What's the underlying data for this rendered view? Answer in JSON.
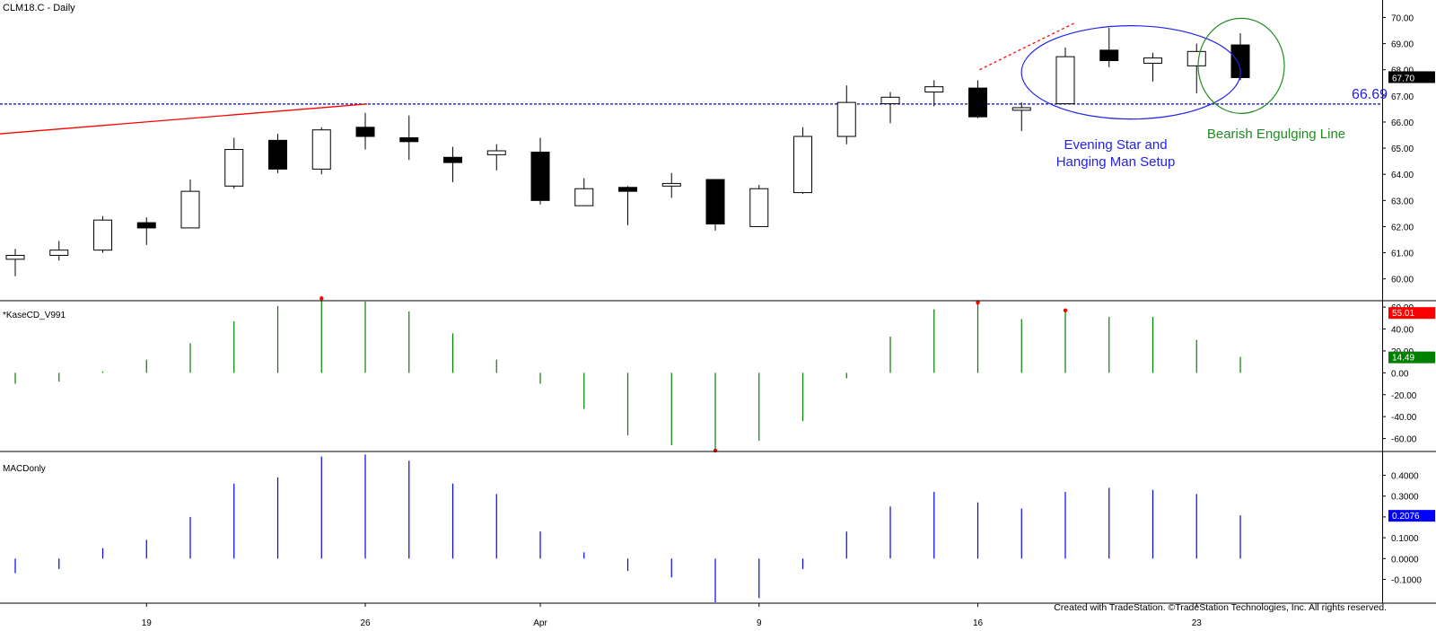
{
  "header": {
    "symbol_title": "CLM18.C - Daily",
    "indicator1_title": "*KaseCD_V991",
    "indicator2_title": "MACDonly",
    "copyright": "Created with TradeStation. ©TradeStation Technologies, Inc. All rights reserved."
  },
  "colors": {
    "up_fill": "#ffffff",
    "down_fill": "#000000",
    "kase_bar": "#008000",
    "kase_dot": "#ff0000",
    "macd_bar": "#0000ff",
    "support_line": "#0000cc",
    "trend_line": "#ff0000",
    "evening_star_circle": "#2222ee",
    "engulfing_circle": "#228b22",
    "last_price_badge": "#000000",
    "kase_hi_badge": "#ff0000",
    "kase_lo_badge": "#008000",
    "macd_badge": "#0000ff"
  },
  "annotations": {
    "support_level": "66.69",
    "evening_star_line1": "Evening Star and",
    "evening_star_line2": "Hanging Man Setup",
    "bearish_engulfing": "Bearish Engulging Line"
  },
  "badges": {
    "last_price": "67.70",
    "kase_high": "55.01",
    "kase_low": "14.49",
    "macd": "0.2076"
  },
  "chart_data": [
    {
      "type": "candlestick",
      "title": "CLM18.C - Daily",
      "x_tick_labels": [
        "19",
        "26",
        "Apr",
        "9",
        "16",
        "23"
      ],
      "x_tick_bar_index": [
        3,
        8,
        12,
        17,
        22,
        27
      ],
      "y_ticks": [
        60.0,
        61.0,
        62.0,
        63.0,
        64.0,
        65.0,
        66.0,
        67.0,
        68.0,
        69.0,
        70.0
      ],
      "y_tick_labels": [
        "60.00",
        "61.00",
        "62.00",
        "63.00",
        "64.00",
        "65.00",
        "66.00",
        "67.00",
        "68.00",
        "69.00",
        "70.00"
      ],
      "ylim": [
        59.2,
        70.6
      ],
      "support_level": 66.69,
      "trend_line": {
        "from_price": 65.55,
        "to_bar": 8,
        "to_price": 66.69
      },
      "dashed_trend": {
        "from_bar": 22,
        "from_price": 68.0,
        "to_bar": 24.2,
        "to_price": 69.78
      },
      "bars": [
        {
          "o": 60.75,
          "h": 61.15,
          "l": 60.1,
          "c": 60.9
        },
        {
          "o": 60.9,
          "h": 61.45,
          "l": 60.7,
          "c": 61.1
        },
        {
          "o": 61.1,
          "h": 62.4,
          "l": 61.0,
          "c": 62.25
        },
        {
          "o": 62.15,
          "h": 62.35,
          "l": 61.3,
          "c": 61.95
        },
        {
          "o": 61.95,
          "h": 63.8,
          "l": 61.95,
          "c": 63.35
        },
        {
          "o": 63.55,
          "h": 65.4,
          "l": 63.45,
          "c": 64.95
        },
        {
          "o": 65.3,
          "h": 65.55,
          "l": 64.05,
          "c": 64.2
        },
        {
          "o": 64.2,
          "h": 65.8,
          "l": 64.0,
          "c": 65.7
        },
        {
          "o": 65.8,
          "h": 66.35,
          "l": 64.95,
          "c": 65.45
        },
        {
          "o": 65.4,
          "h": 66.25,
          "l": 64.55,
          "c": 65.25
        },
        {
          "o": 64.65,
          "h": 65.05,
          "l": 63.7,
          "c": 64.45
        },
        {
          "o": 64.75,
          "h": 65.15,
          "l": 64.15,
          "c": 64.9
        },
        {
          "o": 64.85,
          "h": 65.4,
          "l": 62.85,
          "c": 63.0
        },
        {
          "o": 62.8,
          "h": 63.85,
          "l": 62.8,
          "c": 63.45
        },
        {
          "o": 63.5,
          "h": 63.55,
          "l": 62.05,
          "c": 63.35
        },
        {
          "o": 63.55,
          "h": 64.05,
          "l": 63.1,
          "c": 63.65
        },
        {
          "o": 63.8,
          "h": 63.8,
          "l": 61.85,
          "c": 62.1
        },
        {
          "o": 62.0,
          "h": 63.6,
          "l": 62.0,
          "c": 63.45
        },
        {
          "o": 63.3,
          "h": 65.8,
          "l": 63.25,
          "c": 65.45
        },
        {
          "o": 65.45,
          "h": 67.4,
          "l": 65.15,
          "c": 66.75
        },
        {
          "o": 66.7,
          "h": 67.15,
          "l": 65.95,
          "c": 66.95
        },
        {
          "o": 67.15,
          "h": 67.6,
          "l": 66.6,
          "c": 67.35
        },
        {
          "o": 67.3,
          "h": 67.6,
          "l": 66.15,
          "c": 66.2
        },
        {
          "o": 66.45,
          "h": 66.75,
          "l": 65.65,
          "c": 66.55
        },
        {
          "o": 66.7,
          "h": 68.85,
          "l": 66.7,
          "c": 68.5
        },
        {
          "o": 68.75,
          "h": 69.6,
          "l": 68.1,
          "c": 68.35
        },
        {
          "o": 68.25,
          "h": 68.65,
          "l": 67.55,
          "c": 68.45
        },
        {
          "o": 68.15,
          "h": 69.0,
          "l": 67.1,
          "c": 68.7
        },
        {
          "o": 68.95,
          "h": 69.4,
          "l": 67.6,
          "c": 67.7
        }
      ]
    },
    {
      "type": "bar",
      "title": "*KaseCD_V991",
      "y_ticks": [
        -60.0,
        -40.0,
        -20.0,
        0.0,
        20.0,
        40.0,
        60.0
      ],
      "y_tick_labels": [
        "-60.00",
        "-40.00",
        "-20.00",
        "0.00",
        "20.00",
        "40.00",
        "60.00"
      ],
      "ylim": [
        -71,
        65
      ],
      "values": [
        -10,
        -8,
        0,
        12,
        27,
        47,
        61,
        68,
        65,
        56,
        36,
        12,
        -10,
        -33,
        -57,
        -66,
        -71,
        -62,
        -44,
        -5,
        33,
        58,
        64,
        49,
        57,
        51,
        51,
        30,
        14.49
      ],
      "peak_dots_bar_index": [
        7,
        16,
        22,
        24
      ]
    },
    {
      "type": "bar",
      "title": "MACDonly",
      "y_ticks": [
        -0.1,
        0.0,
        0.1,
        0.2,
        0.3,
        0.4
      ],
      "y_tick_labels": [
        "-0.1000",
        "0.0000",
        "0.1000",
        "0.2000",
        "0.3000",
        "0.4000"
      ],
      "ylim": [
        -0.21,
        0.51
      ],
      "values": [
        -0.07,
        -0.05,
        0.05,
        0.09,
        0.2,
        0.36,
        0.39,
        0.49,
        0.5,
        0.47,
        0.36,
        0.31,
        0.13,
        0.03,
        -0.06,
        -0.09,
        -0.21,
        -0.19,
        -0.05,
        0.13,
        0.25,
        0.32,
        0.27,
        0.24,
        0.32,
        0.34,
        0.33,
        0.31,
        0.2076
      ]
    }
  ]
}
